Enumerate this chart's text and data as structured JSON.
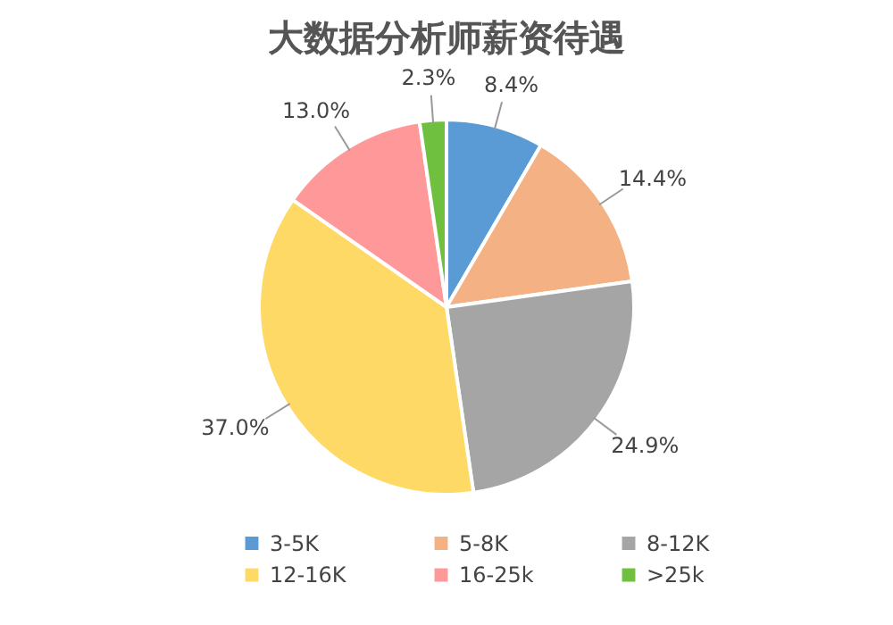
{
  "chart_data": {
    "type": "pie",
    "title": "大数据分析师薪资待遇",
    "categories": [
      "3-5K",
      "5-8K",
      "8-12K",
      "12-16K",
      "16-25k",
      ">25k"
    ],
    "values": [
      8.4,
      14.4,
      24.9,
      37.0,
      13.0,
      2.3
    ],
    "value_labels": [
      "8.4%",
      "14.4%",
      "24.9%",
      "37.0%",
      "13.0%",
      "2.3%"
    ],
    "colors": [
      "#5b9bd5",
      "#f4b183",
      "#a5a5a5",
      "#ffd966",
      "#ff9999",
      "#70c040"
    ],
    "legend": "bottom"
  }
}
